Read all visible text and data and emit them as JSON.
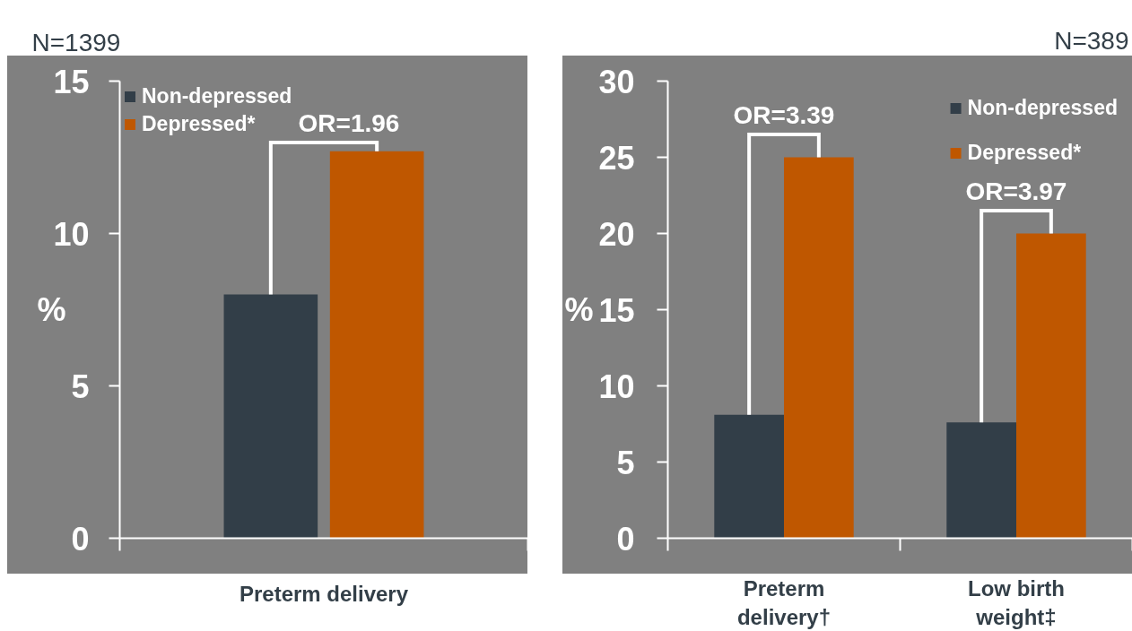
{
  "chart_data": [
    {
      "type": "bar",
      "title": "N=1399",
      "ylabel": "%",
      "categories": [
        "Preterm delivery"
      ],
      "series": [
        {
          "name": "Non-depressed",
          "color": "#323e48",
          "values": [
            8.0
          ]
        },
        {
          "name": "Depressed*",
          "color": "#bf5700",
          "values": [
            12.7
          ]
        }
      ],
      "ylim": [
        0,
        15
      ],
      "yticks": [
        0,
        5,
        10,
        15
      ],
      "grid": false,
      "legend": "top left",
      "annotations": [
        "OR=1.96"
      ]
    },
    {
      "type": "bar",
      "title": "N=389",
      "ylabel": "%",
      "categories": [
        "Preterm delivery†",
        "Low birth weight‡"
      ],
      "series": [
        {
          "name": "Non-depressed",
          "color": "#323e48",
          "values": [
            8.1,
            7.6
          ]
        },
        {
          "name": "Depressed*",
          "color": "#bf5700",
          "values": [
            25,
            20
          ]
        }
      ],
      "ylim": [
        0,
        30
      ],
      "yticks": [
        0,
        5,
        10,
        15,
        20,
        25,
        30
      ],
      "grid": false,
      "legend": "top right",
      "annotations": [
        {
          "text": "OR=3.39",
          "x": "Preterm delivery†",
          "y": 25
        },
        {
          "text": "OR=3.97",
          "x": "Low birth weight‡",
          "y": 20
        }
      ]
    }
  ]
}
